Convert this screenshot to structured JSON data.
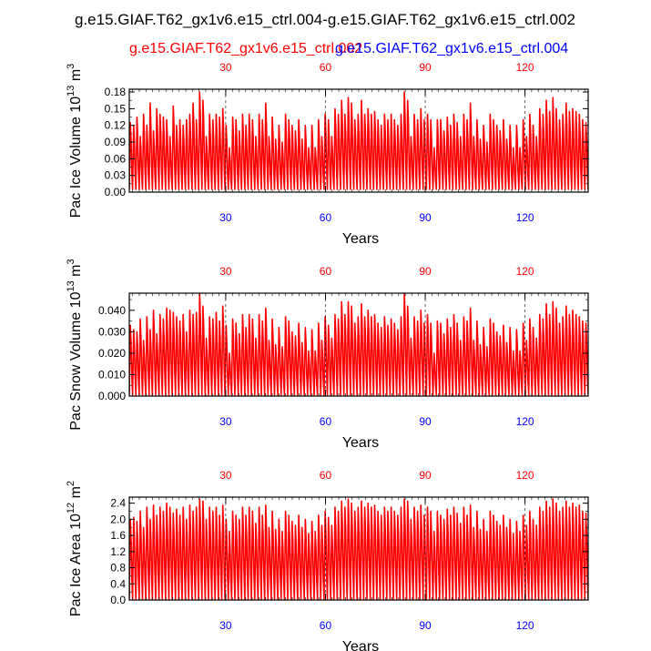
{
  "title": "g.e15.GIAF.T62_gx1v6.e15_ctrl.004-g.e15.GIAF.T62_gx1v6.e15_ctrl.002",
  "legend": {
    "left": {
      "text": "g.e15.GIAF.T62_gx1v6.e15_ctrl.002",
      "color": "#ff0000"
    },
    "right": {
      "text": "g.e15.GIAF.T62_gx1v6.e15_ctrl.004",
      "color": "#0000ff"
    }
  },
  "chart_data": [
    {
      "type": "line",
      "ylabel": {
        "prefix": "Pac Ice Volume 10",
        "exp": "13",
        "unit": " m",
        "unit_exp": "3"
      },
      "xlabel": "Years",
      "xlim": [
        1,
        139
      ],
      "ylim": [
        0,
        0.185
      ],
      "yticks": [
        "0.00",
        "0.03",
        "0.06",
        "0.09",
        "0.12",
        "0.15",
        "0.18"
      ],
      "ytick_values": [
        0,
        0.03,
        0.06,
        0.09,
        0.12,
        0.15,
        0.18
      ],
      "xticks_bottom": [
        "30",
        "60",
        "90",
        "120"
      ],
      "xticks_top": [
        "30",
        "60",
        "90",
        "120"
      ],
      "xtick_values": [
        30,
        60,
        90,
        120
      ],
      "grid_x": true,
      "max_values": [
        0.125,
        0.12,
        0.135,
        0.1,
        0.14,
        0.12,
        0.16,
        0.11,
        0.15,
        0.14,
        0.135,
        0.13,
        0.1,
        0.155,
        0.12,
        0.13,
        0.12,
        0.13,
        0.14,
        0.16,
        0.13,
        0.18,
        0.165,
        0.1,
        0.14,
        0.13,
        0.14,
        0.135,
        0.15,
        0.12,
        0.08,
        0.135,
        0.13,
        0.11,
        0.14,
        0.12,
        0.14,
        0.13,
        0.1,
        0.14,
        0.13,
        0.16,
        0.1,
        0.135,
        0.095,
        0.12,
        0.09,
        0.14,
        0.13,
        0.12,
        0.11,
        0.13,
        0.095,
        0.12,
        0.08,
        0.12,
        0.08,
        0.13,
        0.1,
        0.14,
        0.13,
        0.1,
        0.15,
        0.14,
        0.165,
        0.14,
        0.17,
        0.16,
        0.13,
        0.14,
        0.165,
        0.14,
        0.15,
        0.14,
        0.145,
        0.13,
        0.12,
        0.14,
        0.13,
        0.14,
        0.13,
        0.12,
        0.14,
        0.18,
        0.165,
        0.1,
        0.14,
        0.13,
        0.15,
        0.13,
        0.14,
        0.13,
        0.08,
        0.13,
        0.13,
        0.11,
        0.135,
        0.12,
        0.14,
        0.125,
        0.1,
        0.14,
        0.13,
        0.16,
        0.1,
        0.13,
        0.095,
        0.12,
        0.09,
        0.14,
        0.13,
        0.12,
        0.11,
        0.13,
        0.095,
        0.12,
        0.08,
        0.12,
        0.08,
        0.13,
        0.1,
        0.14,
        0.12,
        0.1,
        0.15,
        0.14,
        0.165,
        0.145,
        0.17,
        0.15,
        0.13,
        0.14,
        0.16,
        0.145,
        0.15,
        0.145,
        0.14,
        0.13,
        0.125
      ],
      "min_values": [
        0.005,
        0.012
      ],
      "series": [
        {
          "name": "g.e15.GIAF.T62_gx1v6.e15_ctrl.002",
          "color": "#ff0000"
        },
        {
          "name": "g.e15.GIAF.T62_gx1v6.e15_ctrl.004",
          "color": "#0000ff"
        }
      ]
    },
    {
      "type": "line",
      "ylabel": {
        "prefix": "Pac Snow Volume 10",
        "exp": "13",
        "unit": " m",
        "unit_exp": "3"
      },
      "xlabel": "Years",
      "xlim": [
        1,
        139
      ],
      "ylim": [
        0,
        0.048
      ],
      "yticks": [
        "0.000",
        "0.010",
        "0.020",
        "0.030",
        "0.040"
      ],
      "ytick_values": [
        0,
        0.01,
        0.02,
        0.03,
        0.04
      ],
      "xticks_bottom": [
        "30",
        "60",
        "90",
        "120"
      ],
      "xticks_top": [
        "30",
        "60",
        "90",
        "120"
      ],
      "xtick_values": [
        30,
        60,
        90,
        120
      ],
      "grid_x": true,
      "max_values": [
        0.033,
        0.031,
        0.03,
        0.036,
        0.026,
        0.037,
        0.031,
        0.04,
        0.029,
        0.038,
        0.036,
        0.041,
        0.04,
        0.039,
        0.037,
        0.035,
        0.038,
        0.03,
        0.04,
        0.038,
        0.039,
        0.048,
        0.042,
        0.027,
        0.037,
        0.036,
        0.039,
        0.035,
        0.042,
        0.033,
        0.02,
        0.036,
        0.034,
        0.029,
        0.038,
        0.032,
        0.038,
        0.036,
        0.027,
        0.038,
        0.035,
        0.041,
        0.026,
        0.036,
        0.024,
        0.032,
        0.023,
        0.037,
        0.035,
        0.03,
        0.028,
        0.034,
        0.025,
        0.032,
        0.021,
        0.031,
        0.021,
        0.034,
        0.026,
        0.037,
        0.033,
        0.027,
        0.038,
        0.036,
        0.044,
        0.038,
        0.044,
        0.042,
        0.034,
        0.037,
        0.043,
        0.037,
        0.04,
        0.037,
        0.038,
        0.034,
        0.032,
        0.037,
        0.033,
        0.036,
        0.034,
        0.031,
        0.037,
        0.048,
        0.042,
        0.027,
        0.037,
        0.035,
        0.04,
        0.034,
        0.038,
        0.034,
        0.02,
        0.035,
        0.034,
        0.029,
        0.036,
        0.032,
        0.038,
        0.034,
        0.026,
        0.037,
        0.035,
        0.041,
        0.026,
        0.035,
        0.024,
        0.032,
        0.023,
        0.036,
        0.034,
        0.03,
        0.028,
        0.033,
        0.025,
        0.032,
        0.021,
        0.031,
        0.021,
        0.034,
        0.026,
        0.036,
        0.032,
        0.027,
        0.038,
        0.036,
        0.043,
        0.038,
        0.044,
        0.041,
        0.034,
        0.037,
        0.042,
        0.038,
        0.04,
        0.038,
        0.037,
        0.035,
        0.034
      ],
      "min_values": [
        0.0005,
        0.001
      ],
      "series": [
        {
          "name": "g.e15.GIAF.T62_gx1v6.e15_ctrl.002",
          "color": "#ff0000"
        },
        {
          "name": "g.e15.GIAF.T62_gx1v6.e15_ctrl.004",
          "color": "#0000ff"
        }
      ]
    },
    {
      "type": "line",
      "ylabel": {
        "prefix": "Pac Ice Area 10",
        "exp": "12",
        "unit": " m",
        "unit_exp": "2"
      },
      "xlabel": "Years",
      "xlim": [
        1,
        139
      ],
      "ylim": [
        0,
        2.55
      ],
      "yticks": [
        "0.0",
        "0.4",
        "0.8",
        "1.2",
        "1.6",
        "2.0",
        "2.4"
      ],
      "ytick_values": [
        0,
        0.4,
        0.8,
        1.2,
        1.6,
        2.0,
        2.4
      ],
      "xticks_bottom": [
        "30",
        "60",
        "90",
        "120"
      ],
      "xticks_top": [
        "30",
        "60",
        "90",
        "120"
      ],
      "xtick_values": [
        30,
        60,
        90,
        120
      ],
      "grid_x": true,
      "max_values": [
        2.0,
        2.05,
        1.95,
        2.2,
        1.8,
        2.3,
        2.0,
        2.35,
        2.1,
        2.3,
        2.2,
        2.4,
        2.3,
        2.15,
        2.25,
        2.1,
        2.3,
        2.0,
        2.35,
        2.2,
        2.3,
        2.5,
        2.45,
        2.0,
        2.3,
        2.2,
        2.3,
        2.1,
        2.35,
        2.0,
        1.7,
        2.2,
        2.1,
        2.0,
        2.3,
        2.1,
        2.3,
        2.2,
        1.9,
        2.3,
        2.1,
        2.35,
        1.8,
        2.2,
        1.75,
        2.0,
        1.7,
        2.2,
        2.1,
        1.95,
        1.85,
        2.1,
        1.8,
        2.0,
        1.65,
        1.95,
        1.7,
        2.1,
        1.85,
        2.2,
        2.05,
        1.85,
        2.3,
        2.2,
        2.45,
        2.3,
        2.5,
        2.4,
        2.2,
        2.3,
        2.45,
        2.3,
        2.4,
        2.3,
        2.35,
        2.2,
        2.1,
        2.3,
        2.2,
        2.3,
        2.2,
        2.1,
        2.3,
        2.5,
        2.45,
        2.0,
        2.3,
        2.2,
        2.35,
        2.1,
        2.3,
        2.2,
        1.7,
        2.2,
        2.1,
        2.0,
        2.25,
        2.1,
        2.3,
        2.15,
        1.9,
        2.3,
        2.1,
        2.35,
        1.8,
        2.2,
        1.75,
        2.0,
        1.7,
        2.2,
        2.1,
        1.95,
        1.85,
        2.1,
        1.8,
        2.0,
        1.65,
        1.95,
        1.7,
        2.1,
        1.85,
        2.2,
        2.0,
        1.85,
        2.3,
        2.2,
        2.45,
        2.3,
        2.5,
        2.4,
        2.2,
        2.3,
        2.45,
        2.3,
        2.4,
        2.3,
        2.35,
        2.2,
        2.15
      ],
      "min_values": [
        0.02,
        0.05
      ],
      "series": [
        {
          "name": "g.e15.GIAF.T62_gx1v6.e15_ctrl.002",
          "color": "#ff0000"
        },
        {
          "name": "g.e15.GIAF.T62_gx1v6.e15_ctrl.004",
          "color": "#0000ff"
        }
      ]
    }
  ]
}
